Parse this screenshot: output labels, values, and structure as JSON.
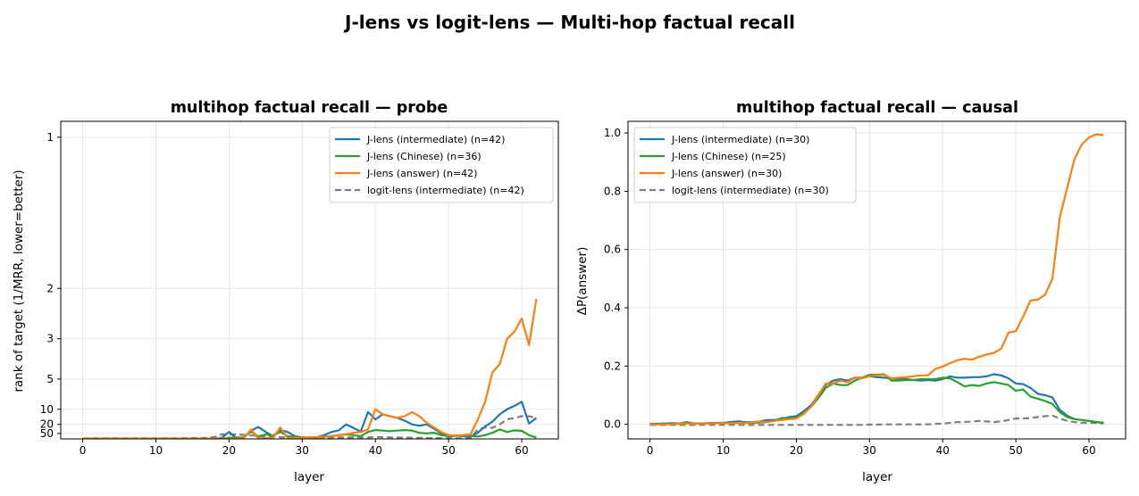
{
  "suptitle": "J-lens vs logit-lens — Multi-hop factual recall",
  "chart_data": [
    {
      "type": "line",
      "title": "multihop factual recall — probe",
      "xlabel": "layer",
      "ylabel": "rank of target (1/MRR, lower=better)",
      "xlim": [
        -3,
        65
      ],
      "xticks": [
        0,
        10,
        20,
        30,
        40,
        50,
        60
      ],
      "yscale": "reciprocal",
      "yticks": [
        1,
        2,
        3,
        5,
        10,
        20,
        50
      ],
      "ylim": [
        0.95,
        500
      ],
      "grid": true,
      "legend_position": "upper-right",
      "series": [
        {
          "name": "J-lens (intermediate) (n=42)",
          "color": "#1f77b4",
          "style": "solid",
          "x": [
            0,
            1,
            2,
            3,
            4,
            5,
            6,
            7,
            8,
            9,
            10,
            11,
            12,
            13,
            14,
            15,
            16,
            17,
            18,
            19,
            20,
            21,
            22,
            23,
            24,
            25,
            26,
            27,
            28,
            29,
            30,
            31,
            32,
            33,
            34,
            35,
            36,
            37,
            38,
            39,
            40,
            41,
            42,
            43,
            44,
            45,
            46,
            47,
            48,
            49,
            50,
            51,
            52,
            53,
            54,
            55,
            56,
            57,
            58,
            59,
            60,
            61,
            62
          ],
          "values": [
            400,
            400,
            400,
            400,
            400,
            400,
            400,
            400,
            400,
            400,
            400,
            400,
            400,
            400,
            400,
            400,
            400,
            400,
            400,
            180,
            40,
            220,
            180,
            34,
            24,
            40,
            90,
            32,
            40,
            90,
            140,
            180,
            130,
            70,
            40,
            33,
            20,
            26,
            38,
            11,
            15,
            12,
            13,
            14,
            16,
            20,
            22,
            20,
            28,
            48,
            100,
            80,
            90,
            110,
            45,
            23,
            17,
            12,
            10,
            9,
            8,
            19,
            14
          ]
        },
        {
          "name": "J-lens (Chinese) (n=36)",
          "color": "#2ca02c",
          "style": "solid",
          "x": [
            0,
            1,
            2,
            3,
            4,
            5,
            6,
            7,
            8,
            9,
            10,
            11,
            12,
            13,
            14,
            15,
            16,
            17,
            18,
            19,
            20,
            21,
            22,
            23,
            24,
            25,
            26,
            27,
            28,
            29,
            30,
            31,
            32,
            33,
            34,
            35,
            36,
            37,
            38,
            39,
            40,
            41,
            42,
            43,
            44,
            45,
            46,
            47,
            48,
            49,
            50,
            51,
            52,
            53,
            54,
            55,
            56,
            57,
            58,
            59,
            60,
            61,
            62
          ],
          "values": [
            400,
            400,
            400,
            400,
            400,
            400,
            400,
            400,
            400,
            400,
            400,
            400,
            400,
            400,
            400,
            400,
            400,
            400,
            400,
            400,
            170,
            150,
            150,
            38,
            100,
            60,
            80,
            40,
            90,
            120,
            150,
            150,
            130,
            110,
            90,
            70,
            60,
            70,
            90,
            40,
            32,
            34,
            36,
            34,
            32,
            34,
            45,
            50,
            45,
            70,
            90,
            80,
            70,
            90,
            100,
            70,
            45,
            30,
            40,
            33,
            35,
            70,
            150
          ]
        },
        {
          "name": "J-lens (answer) (n=42)",
          "color": "#ff7f0e",
          "style": "solid",
          "x": [
            0,
            1,
            2,
            3,
            4,
            5,
            6,
            7,
            8,
            9,
            10,
            11,
            12,
            13,
            14,
            15,
            16,
            17,
            18,
            19,
            20,
            21,
            22,
            23,
            24,
            25,
            26,
            27,
            28,
            29,
            30,
            31,
            32,
            33,
            34,
            35,
            36,
            37,
            38,
            39,
            40,
            41,
            42,
            43,
            44,
            45,
            46,
            47,
            48,
            49,
            50,
            51,
            52,
            53,
            54,
            55,
            56,
            57,
            58,
            59,
            60,
            61,
            62
          ],
          "values": [
            400,
            400,
            400,
            400,
            400,
            400,
            400,
            400,
            400,
            400,
            400,
            400,
            400,
            400,
            400,
            400,
            400,
            400,
            400,
            400,
            400,
            350,
            300,
            30,
            300,
            200,
            250,
            25,
            200,
            200,
            180,
            150,
            120,
            110,
            90,
            70,
            60,
            45,
            40,
            30,
            10,
            12,
            13,
            14,
            13,
            11,
            13,
            18,
            25,
            40,
            70,
            80,
            70,
            60,
            15,
            8,
            4.5,
            4,
            3,
            2.8,
            2.5,
            3.2,
            2.15
          ]
        },
        {
          "name": "logit-lens (intermediate) (n=42)",
          "color": "#7f7f7f",
          "style": "dashed",
          "x": [
            0,
            1,
            2,
            3,
            4,
            5,
            6,
            7,
            8,
            9,
            10,
            11,
            12,
            13,
            14,
            15,
            16,
            17,
            18,
            19,
            20,
            21,
            22,
            23,
            24,
            25,
            26,
            27,
            28,
            29,
            30,
            31,
            32,
            33,
            34,
            35,
            36,
            37,
            38,
            39,
            40,
            41,
            42,
            43,
            44,
            45,
            46,
            47,
            48,
            49,
            50,
            51,
            52,
            53,
            54,
            55,
            56,
            57,
            58,
            59,
            60,
            61,
            62
          ],
          "values": [
            250,
            250,
            250,
            250,
            250,
            250,
            250,
            250,
            250,
            250,
            250,
            250,
            250,
            240,
            230,
            220,
            200,
            180,
            120,
            60,
            60,
            60,
            65,
            75,
            80,
            100,
            110,
            130,
            140,
            150,
            150,
            150,
            150,
            150,
            150,
            150,
            150,
            150,
            150,
            150,
            120,
            130,
            140,
            150,
            160,
            170,
            180,
            200,
            220,
            230,
            250,
            260,
            270,
            300,
            30,
            25,
            26,
            20,
            15,
            14,
            13,
            13,
            14
          ]
        }
      ]
    },
    {
      "type": "line",
      "title": "multihop factual recall — causal",
      "xlabel": "layer",
      "ylabel": "ΔP(answer)",
      "xlim": [
        -3,
        65
      ],
      "xticks": [
        0,
        10,
        20,
        30,
        40,
        50,
        60
      ],
      "yticks": [
        0.0,
        0.2,
        0.4,
        0.6,
        0.8,
        1.0
      ],
      "ylim": [
        -0.05,
        1.04
      ],
      "grid": true,
      "legend_position": "upper-left",
      "series": [
        {
          "name": "J-lens (intermediate) (n=30)",
          "color": "#1f77b4",
          "style": "solid",
          "x": [
            0,
            1,
            2,
            3,
            4,
            5,
            6,
            7,
            8,
            9,
            10,
            11,
            12,
            13,
            14,
            15,
            16,
            17,
            18,
            19,
            20,
            21,
            22,
            23,
            24,
            25,
            26,
            27,
            28,
            29,
            30,
            31,
            32,
            33,
            34,
            35,
            36,
            37,
            38,
            39,
            40,
            41,
            42,
            43,
            44,
            45,
            46,
            47,
            48,
            49,
            50,
            51,
            52,
            53,
            54,
            55,
            56,
            57,
            58,
            59,
            60,
            61,
            62
          ],
          "values": [
            0.002,
            0.002,
            0.003,
            0.004,
            0.003,
            0.005,
            0.003,
            0.003,
            0.004,
            0.005,
            0.005,
            0.008,
            0.01,
            0.008,
            0.007,
            0.01,
            0.015,
            0.015,
            0.018,
            0.025,
            0.028,
            0.045,
            0.065,
            0.1,
            0.135,
            0.15,
            0.155,
            0.15,
            0.16,
            0.16,
            0.165,
            0.162,
            0.16,
            0.158,
            0.155,
            0.155,
            0.152,
            0.15,
            0.152,
            0.15,
            0.155,
            0.165,
            0.16,
            0.16,
            0.162,
            0.162,
            0.165,
            0.172,
            0.168,
            0.158,
            0.14,
            0.138,
            0.125,
            0.105,
            0.1,
            0.092,
            0.05,
            0.03,
            0.018,
            0.015,
            0.012,
            0.008,
            0.005
          ]
        },
        {
          "name": "J-lens (Chinese) (n=25)",
          "color": "#2ca02c",
          "style": "solid",
          "x": [
            0,
            1,
            2,
            3,
            4,
            5,
            6,
            7,
            8,
            9,
            10,
            11,
            12,
            13,
            14,
            15,
            16,
            17,
            18,
            19,
            20,
            21,
            22,
            23,
            24,
            25,
            26,
            27,
            28,
            29,
            30,
            31,
            32,
            33,
            34,
            35,
            36,
            37,
            38,
            39,
            40,
            41,
            42,
            43,
            44,
            45,
            46,
            47,
            48,
            49,
            50,
            51,
            52,
            53,
            54,
            55,
            56,
            57,
            58,
            59,
            60,
            61,
            62
          ],
          "values": [
            0.0,
            0.0,
            0.002,
            0.002,
            0.002,
            0.008,
            0.003,
            0.003,
            0.004,
            0.004,
            0.004,
            0.004,
            0.005,
            0.005,
            0.005,
            0.006,
            0.008,
            0.012,
            0.022,
            0.02,
            0.022,
            0.04,
            0.06,
            0.09,
            0.125,
            0.14,
            0.135,
            0.135,
            0.15,
            0.16,
            0.17,
            0.17,
            0.172,
            0.15,
            0.15,
            0.152,
            0.152,
            0.155,
            0.155,
            0.155,
            0.16,
            0.158,
            0.145,
            0.13,
            0.135,
            0.132,
            0.14,
            0.145,
            0.14,
            0.135,
            0.115,
            0.12,
            0.095,
            0.088,
            0.08,
            0.07,
            0.042,
            0.025,
            0.018,
            0.015,
            0.012,
            0.008,
            0.005
          ]
        },
        {
          "name": "J-lens (answer) (n=30)",
          "color": "#ff7f0e",
          "style": "solid",
          "x": [
            0,
            1,
            2,
            3,
            4,
            5,
            6,
            7,
            8,
            9,
            10,
            11,
            12,
            13,
            14,
            15,
            16,
            17,
            18,
            19,
            20,
            21,
            22,
            23,
            24,
            25,
            26,
            27,
            28,
            29,
            30,
            31,
            32,
            33,
            34,
            35,
            36,
            37,
            38,
            39,
            40,
            41,
            42,
            43,
            44,
            45,
            46,
            47,
            48,
            49,
            50,
            51,
            52,
            53,
            54,
            55,
            56,
            57,
            58,
            59,
            60,
            61,
            62
          ],
          "values": [
            0.0,
            0.0,
            0.0,
            0.0,
            0.002,
            0.003,
            0.002,
            0.002,
            0.003,
            0.004,
            0.004,
            0.004,
            0.005,
            0.005,
            0.006,
            0.01,
            0.008,
            0.012,
            0.015,
            0.018,
            0.02,
            0.035,
            0.06,
            0.1,
            0.14,
            0.14,
            0.15,
            0.145,
            0.16,
            0.158,
            0.165,
            0.168,
            0.17,
            0.158,
            0.16,
            0.162,
            0.165,
            0.168,
            0.168,
            0.19,
            0.198,
            0.21,
            0.22,
            0.225,
            0.222,
            0.232,
            0.24,
            0.245,
            0.26,
            0.315,
            0.32,
            0.37,
            0.425,
            0.428,
            0.445,
            0.5,
            0.71,
            0.81,
            0.91,
            0.96,
            0.985,
            0.995,
            0.993
          ]
        },
        {
          "name": "logit-lens (intermediate) (n=30)",
          "color": "#7f7f7f",
          "style": "dashed",
          "x": [
            0,
            1,
            2,
            3,
            4,
            5,
            6,
            7,
            8,
            9,
            10,
            11,
            12,
            13,
            14,
            15,
            16,
            17,
            18,
            19,
            20,
            21,
            22,
            23,
            24,
            25,
            26,
            27,
            28,
            29,
            30,
            31,
            32,
            33,
            34,
            35,
            36,
            37,
            38,
            39,
            40,
            41,
            42,
            43,
            44,
            45,
            46,
            47,
            48,
            49,
            50,
            51,
            52,
            53,
            54,
            55,
            56,
            57,
            58,
            59,
            60,
            61,
            62
          ],
          "values": [
            -0.002,
            -0.002,
            -0.002,
            -0.002,
            -0.002,
            -0.002,
            -0.002,
            -0.002,
            -0.002,
            -0.002,
            -0.002,
            -0.002,
            -0.002,
            -0.002,
            -0.002,
            -0.002,
            -0.002,
            -0.002,
            -0.002,
            -0.002,
            -0.002,
            -0.002,
            -0.002,
            -0.002,
            -0.002,
            -0.002,
            -0.002,
            -0.002,
            -0.002,
            -0.002,
            -0.001,
            -0.001,
            0.0,
            0.0,
            0.0,
            0.0,
            0.0,
            0.0,
            0.0,
            0.002,
            0.002,
            0.005,
            0.008,
            0.008,
            0.01,
            0.012,
            0.01,
            0.008,
            0.01,
            0.015,
            0.02,
            0.02,
            0.022,
            0.025,
            0.028,
            0.03,
            0.02,
            0.012,
            0.008,
            0.005,
            0.005,
            0.005,
            0.003
          ]
        }
      ]
    }
  ]
}
